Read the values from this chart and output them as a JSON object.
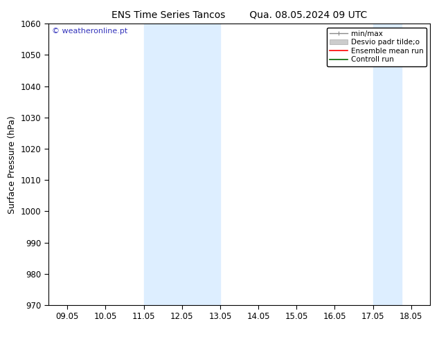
{
  "title_left": "ENS Time Series Tancos",
  "title_right": "Qua. 08.05.2024 09 UTC",
  "ylabel": "Surface Pressure (hPa)",
  "ylim": [
    970,
    1060
  ],
  "yticks": [
    970,
    980,
    990,
    1000,
    1010,
    1020,
    1030,
    1040,
    1050,
    1060
  ],
  "xtick_labels": [
    "09.05",
    "10.05",
    "11.05",
    "12.05",
    "13.05",
    "14.05",
    "15.05",
    "16.05",
    "17.05",
    "18.05"
  ],
  "xtick_positions": [
    0,
    1,
    2,
    3,
    4,
    5,
    6,
    7,
    8,
    9
  ],
  "xlim": [
    -0.5,
    9.5
  ],
  "shaded_bands": [
    {
      "x_start": 2.0,
      "x_end": 4.0,
      "color": "#ddeeff"
    },
    {
      "x_start": 8.0,
      "x_end": 8.75,
      "color": "#ddeeff"
    }
  ],
  "watermark_text": "© weatheronline.pt",
  "watermark_color": "#3333bb",
  "legend_entries": [
    {
      "label": "min/max",
      "color": "#888888",
      "lw": 1.0,
      "style": "line_with_bars"
    },
    {
      "label": "Desvio padr tilde;o",
      "color": "#cccccc",
      "style": "fill"
    },
    {
      "label": "Ensemble mean run",
      "color": "#ff0000",
      "lw": 1.2,
      "style": "line"
    },
    {
      "label": "Controll run",
      "color": "#006600",
      "lw": 1.2,
      "style": "line"
    }
  ],
  "bg_color": "#ffffff",
  "plot_bg_color": "#ffffff",
  "border_color": "#000000",
  "tick_color": "#000000",
  "title_fontsize": 10,
  "label_fontsize": 9,
  "tick_fontsize": 8.5
}
